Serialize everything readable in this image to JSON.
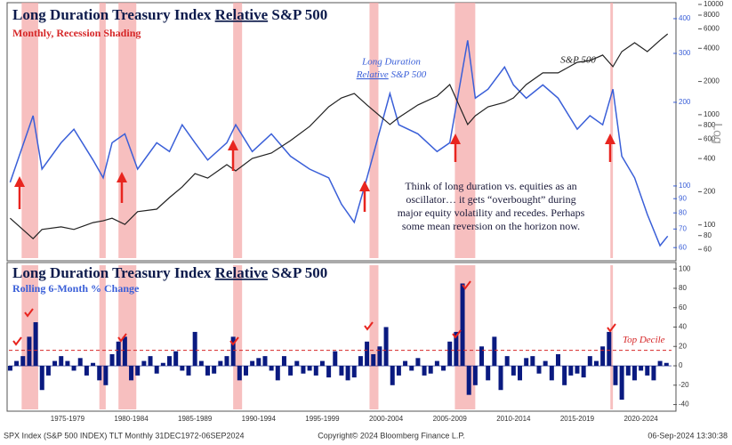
{
  "recessions": [
    [
      1973.9,
      1975.2
    ],
    [
      1980.0,
      1980.5
    ],
    [
      1981.5,
      1982.9
    ],
    [
      1990.5,
      1991.2
    ],
    [
      2001.2,
      2001.9
    ],
    [
      2007.9,
      2009.5
    ],
    [
      2020.1,
      2020.3
    ]
  ],
  "recession_color": "#f4a9a9",
  "footer": {
    "left": "SPX Index (S&P 500 INDEX) TLT  Monthly 31DEC1972-06SEP2024",
    "center": "Copyright© 2024 Bloomberg Finance L.P.",
    "right": "06-Sep-2024 13:30:38"
  },
  "chart_data": [
    {
      "type": "line",
      "title": [
        "Long Duration Treasury Index",
        "Relative",
        "S&P 500"
      ],
      "subtitle": "Monthly, Recession Shading",
      "axis_note": "Log",
      "log_scale": true,
      "annotation": [
        "Think of long duration vs. equities as an",
        "oscillator… it gets “overbought” during",
        "major equity volatility and recedes. Perhaps",
        "some mean reversion on the horizon now."
      ],
      "xlim": [
        1972.9,
        2024.9
      ],
      "ylim": [
        55,
        450
      ],
      "yticks": [
        60,
        70,
        80,
        90,
        100,
        200,
        300,
        400
      ],
      "y2lim": [
        50,
        10000
      ],
      "y2ticks": [
        60,
        80,
        100,
        200,
        400,
        600,
        800,
        1000,
        2000,
        4000,
        6000,
        8000,
        10000
      ],
      "x": [
        1973.0,
        1974.8,
        1975.5,
        1977.0,
        1978.0,
        1979.5,
        1980.3,
        1981.0,
        1982.0,
        1983.0,
        1984.5,
        1985.5,
        1986.5,
        1987.5,
        1988.5,
        1990.0,
        1990.7,
        1992.0,
        1993.5,
        1995.0,
        1996.5,
        1998.0,
        1999.0,
        2000.0,
        2001.0,
        2002.8,
        2003.5,
        2005.0,
        2006.5,
        2007.5,
        2008.9,
        2009.5,
        2010.5,
        2011.8,
        2012.5,
        2013.5,
        2014.8,
        2016.0,
        2017.5,
        2018.5,
        2019.5,
        2020.3,
        2021.0,
        2022.0,
        2023.0,
        2024.0,
        2024.6
      ],
      "series": [
        {
          "name": [
            "Long Duration",
            "Relative",
            "S&P 500"
          ],
          "color": "#3a5fd8",
          "values": [
            103,
            179,
            115,
            143,
            160,
            124,
            107,
            143,
            154,
            115,
            143,
            133,
            166,
            143,
            124,
            143,
            166,
            133,
            154,
            128,
            115,
            107,
            86,
            74,
            107,
            215,
            166,
            154,
            133,
            143,
            334,
            207,
            223,
            268,
            231,
            207,
            231,
            207,
            160,
            179,
            166,
            223,
            128,
            107,
            79,
            61,
            66
          ]
        },
        {
          "name": "S&P 500",
          "color": "#222222",
          "axis": "y2",
          "values": [
            115,
            75,
            91,
            96,
            91,
            105,
            109,
            115,
            101,
            132,
            139,
            177,
            221,
            292,
            266,
            352,
            309,
            401,
            448,
            582,
            782,
            1178,
            1419,
            1559,
            1226,
            814,
            944,
            1226,
            1475,
            1876,
            814,
            977,
            1178,
            1292,
            1419,
            1876,
            2394,
            2394,
            2986,
            3100,
            3470,
            2726,
            3731,
            4500,
            3730,
            4740,
            5400
          ]
        }
      ]
    },
    {
      "type": "bar",
      "title": [
        "Long Duration Treasury Index",
        "Relative",
        "S&P 500"
      ],
      "subtitle": "Rolling 6-Month % Change",
      "color": "#0a1a80",
      "xlim": [
        1972.9,
        2024.9
      ],
      "ylim": [
        -45,
        102
      ],
      "yticks": [
        -40,
        -20,
        0,
        20,
        40,
        60,
        80,
        100
      ],
      "reference_line": {
        "value": 16,
        "label": "Top Decile",
        "color": "#d62728"
      },
      "xticks": [
        {
          "value": 1977.5,
          "label": "1975-1979"
        },
        {
          "value": 1982.5,
          "label": "1980-1984"
        },
        {
          "value": 1987.5,
          "label": "1985-1989"
        },
        {
          "value": 1992.5,
          "label": "1990-1994"
        },
        {
          "value": 1997.5,
          "label": "1995-1999"
        },
        {
          "value": 2002.5,
          "label": "2000-2004"
        },
        {
          "value": 2007.5,
          "label": "2005-2009"
        },
        {
          "value": 2012.5,
          "label": "2010-2014"
        },
        {
          "value": 2017.5,
          "label": "2015-2019"
        },
        {
          "value": 2022.5,
          "label": "2020-2024"
        }
      ],
      "x": [
        1973,
        1973.5,
        1974,
        1974.5,
        1975,
        1975.5,
        1976,
        1976.5,
        1977,
        1977.5,
        1978,
        1978.5,
        1979,
        1979.5,
        1980,
        1980.5,
        1981,
        1981.5,
        1982,
        1982.5,
        1983,
        1983.5,
        1984,
        1984.5,
        1985,
        1985.5,
        1986,
        1986.5,
        1987,
        1987.5,
        1988,
        1988.5,
        1989,
        1989.5,
        1990,
        1990.5,
        1991,
        1991.5,
        1992,
        1992.5,
        1993,
        1993.5,
        1994,
        1994.5,
        1995,
        1995.5,
        1996,
        1996.5,
        1997,
        1997.5,
        1998,
        1998.5,
        1999,
        1999.5,
        2000,
        2000.5,
        2001,
        2001.5,
        2002,
        2002.5,
        2003,
        2003.5,
        2004,
        2004.5,
        2005,
        2005.5,
        2006,
        2006.5,
        2007,
        2007.5,
        2008,
        2008.5,
        2009,
        2009.5,
        2010,
        2010.5,
        2011,
        2011.5,
        2012,
        2012.5,
        2013,
        2013.5,
        2014,
        2014.5,
        2015,
        2015.5,
        2016,
        2016.5,
        2017,
        2017.5,
        2018,
        2018.5,
        2019,
        2019.5,
        2020,
        2020.5,
        2021,
        2021.5,
        2022,
        2022.5,
        2023,
        2023.5,
        2024,
        2024.5
      ],
      "values": [
        -5,
        5,
        10,
        30,
        45,
        -25,
        -10,
        5,
        10,
        5,
        -5,
        8,
        -10,
        3,
        -15,
        -20,
        12,
        25,
        30,
        -15,
        -10,
        5,
        10,
        -8,
        3,
        10,
        15,
        -5,
        -10,
        35,
        5,
        -10,
        -8,
        5,
        10,
        30,
        -15,
        -10,
        5,
        8,
        10,
        -5,
        -15,
        10,
        -10,
        5,
        -8,
        -5,
        -10,
        5,
        -12,
        15,
        -10,
        -15,
        -12,
        10,
        25,
        12,
        20,
        40,
        -20,
        -10,
        5,
        -5,
        8,
        -10,
        -8,
        5,
        -5,
        25,
        35,
        85,
        -30,
        -20,
        20,
        -15,
        30,
        -25,
        10,
        -10,
        -15,
        8,
        10,
        -8,
        5,
        -15,
        12,
        -20,
        -10,
        -8,
        -12,
        10,
        5,
        20,
        35,
        -20,
        -35,
        -10,
        -15,
        -5,
        -10,
        -15,
        5,
        3
      ]
    }
  ]
}
